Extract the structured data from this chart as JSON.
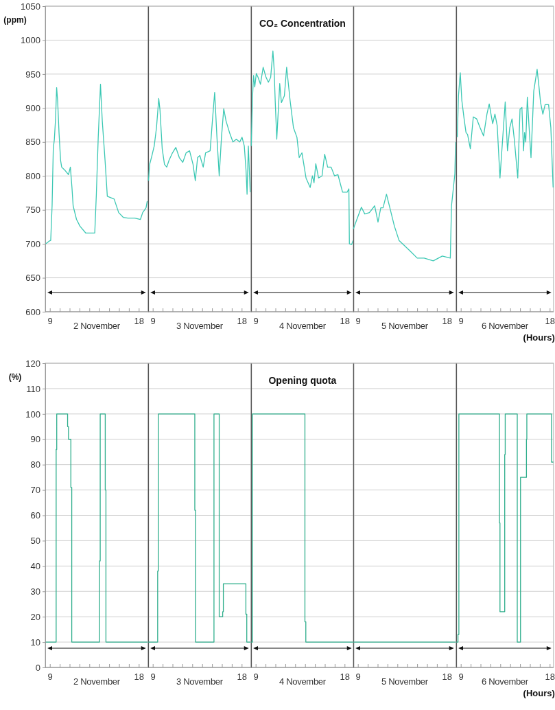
{
  "chart_data": [
    {
      "type": "line",
      "ylabel": "(ppm)",
      "xlabel": "2 November",
      "grid": "y",
      "marker": "none",
      "line_style": "solid",
      "xlim": [
        8.5,
        18.9
      ],
      "ylim": [
        600,
        1050
      ],
      "yticks": [
        600,
        650,
        700,
        750,
        800,
        850,
        900,
        950,
        1000,
        1050
      ],
      "xticks": [
        {
          "value": 9,
          "label": "9"
        },
        {
          "value": 10,
          "label": null
        },
        {
          "value": 11,
          "label": null
        },
        {
          "value": 12,
          "label": null
        },
        {
          "value": 13,
          "label": null
        },
        {
          "value": 14,
          "label": null
        },
        {
          "value": 15,
          "label": null
        },
        {
          "value": 16,
          "label": null
        },
        {
          "value": 17,
          "label": null
        },
        {
          "value": 18,
          "label": "18"
        }
      ],
      "series": [
        {
          "color": "#3cc8b4",
          "x": [
            8.55,
            8.89,
            9.05,
            9.19,
            9.31,
            9.42,
            9.54,
            9.65,
            9.75,
            9.89,
            10.05,
            10.16,
            10.51,
            10.85,
            11.04,
            11.2,
            11.32,
            11.66,
            12.01,
            12.59,
            13.16,
            13.51,
            13.67,
            13.86,
            14.09,
            14.27,
            14.55,
            14.78,
            15.47,
            15.93,
            16.39,
            16.86,
            17.55,
            18.13,
            18.36,
            18.7,
            18.82
          ],
          "values": [
            700,
            704,
            705,
            756,
            840,
            854,
            884,
            930,
            911,
            864,
            823,
            813,
            808,
            802,
            813,
            783,
            756,
            736,
            726,
            716,
            716,
            716,
            773,
            857,
            935,
            881,
            823,
            770,
            766,
            746,
            739,
            738,
            738,
            736,
            746,
            753,
            763
          ]
        }
      ]
    },
    {
      "type": "line",
      "xlabel": "3 November",
      "grid": "y",
      "marker": "none",
      "line_style": "solid",
      "tick_labels": "x",
      "xlim": [
        8.5,
        18.9
      ],
      "ylim": [
        600,
        1050
      ],
      "yticks": [
        600,
        650,
        700,
        750,
        800,
        850,
        900,
        950,
        1000,
        1050
      ],
      "xticks": [
        {
          "value": 9,
          "label": "9"
        },
        {
          "value": 10,
          "label": null
        },
        {
          "value": 11,
          "label": null
        },
        {
          "value": 12,
          "label": null
        },
        {
          "value": 13,
          "label": null
        },
        {
          "value": 14,
          "label": null
        },
        {
          "value": 15,
          "label": null
        },
        {
          "value": 16,
          "label": null
        },
        {
          "value": 17,
          "label": null
        },
        {
          "value": 18,
          "label": "18"
        }
      ],
      "series": [
        {
          "color": "#3cc8b4",
          "x": [
            8.53,
            8.65,
            8.88,
            9.11,
            9.34,
            9.57,
            9.69,
            9.92,
            10.15,
            10.38,
            10.61,
            10.96,
            11.3,
            11.65,
            12.0,
            12.34,
            12.69,
            13.04,
            13.27,
            13.5,
            13.73,
            14.07,
            14.31,
            14.77,
            15.0,
            15.23,
            15.46,
            15.69,
            15.92,
            16.15,
            16.38,
            16.73,
            17.08,
            17.42,
            17.77,
            18.0,
            18.23,
            18.41,
            18.51,
            18.64,
            18.83
          ],
          "values": [
            793,
            817,
            830,
            844,
            871,
            914,
            898,
            840,
            817,
            813,
            823,
            834,
            842,
            827,
            820,
            834,
            837,
            817,
            793,
            827,
            830,
            813,
            834,
            837,
            881,
            923,
            857,
            800,
            857,
            899,
            881,
            864,
            850,
            854,
            850,
            857,
            844,
            807,
            773,
            844,
            776
          ]
        }
      ]
    },
    {
      "type": "line",
      "title": "CO₂ Concentration",
      "xlabel": "4 November",
      "grid": "y",
      "marker": "none",
      "line_style": "solid",
      "tick_labels": "x",
      "xlim": [
        8.5,
        18.9
      ],
      "ylim": [
        600,
        1050
      ],
      "yticks": [
        600,
        650,
        700,
        750,
        800,
        850,
        900,
        950,
        1000,
        1050
      ],
      "xticks": [
        {
          "value": 9,
          "label": "9"
        },
        {
          "value": 10,
          "label": null
        },
        {
          "value": 11,
          "label": null
        },
        {
          "value": 12,
          "label": null
        },
        {
          "value": 13,
          "label": null
        },
        {
          "value": 14,
          "label": null
        },
        {
          "value": 15,
          "label": null
        },
        {
          "value": 16,
          "label": null
        },
        {
          "value": 17,
          "label": null
        },
        {
          "value": 18,
          "label": "18"
        }
      ],
      "series": [
        {
          "color": "#3cc8b4",
          "x": [
            8.52,
            8.64,
            8.75,
            8.87,
            9.03,
            9.21,
            9.45,
            9.72,
            10.02,
            10.25,
            10.48,
            10.71,
            10.83,
            10.94,
            11.1,
            11.4,
            11.57,
            11.87,
            12.1,
            12.45,
            12.79,
            13.14,
            13.37,
            13.65,
            14.06,
            14.48,
            14.71,
            14.87,
            15.05,
            15.33,
            15.68,
            15.95,
            16.25,
            16.6,
            16.95,
            17.29,
            17.76,
            18.22,
            18.4,
            18.45,
            18.68,
            18.82
          ],
          "values": [
            844,
            914,
            948,
            931,
            951,
            945,
            935,
            960,
            945,
            938,
            945,
            984,
            958,
            911,
            854,
            936,
            908,
            918,
            960,
            911,
            871,
            857,
            827,
            834,
            797,
            783,
            800,
            790,
            818,
            797,
            800,
            832,
            813,
            813,
            800,
            802,
            776,
            776,
            781,
            700,
            699,
            705
          ]
        }
      ]
    },
    {
      "type": "line",
      "xlabel": "5 November",
      "grid": "y",
      "marker": "none",
      "line_style": "solid",
      "tick_labels": "x",
      "xlim": [
        8.5,
        18.9
      ],
      "ylim": [
        600,
        1050
      ],
      "yticks": [
        600,
        650,
        700,
        750,
        800,
        850,
        900,
        950,
        1000,
        1050
      ],
      "xticks": [
        {
          "value": 9,
          "label": "9"
        },
        {
          "value": 10,
          "label": null
        },
        {
          "value": 11,
          "label": null
        },
        {
          "value": 12,
          "label": null
        },
        {
          "value": 13,
          "label": null
        },
        {
          "value": 14,
          "label": null
        },
        {
          "value": 15,
          "label": null
        },
        {
          "value": 16,
          "label": null
        },
        {
          "value": 17,
          "label": null
        },
        {
          "value": 18,
          "label": "18"
        }
      ],
      "series": [
        {
          "color": "#3cc8b4",
          "x": [
            8.51,
            8.86,
            9.32,
            9.66,
            10.13,
            10.66,
            11.0,
            11.28,
            11.51,
            11.86,
            12.2,
            12.66,
            13.13,
            13.7,
            14.28,
            14.97,
            15.67,
            16.59,
            17.51,
            18.32,
            18.44,
            18.78,
            18.85
          ],
          "values": [
            722,
            736,
            754,
            744,
            746,
            756,
            732,
            753,
            753,
            773,
            753,
            726,
            705,
            697,
            689,
            679,
            679,
            675,
            682,
            679,
            756,
            803,
            850
          ]
        }
      ]
    },
    {
      "type": "line",
      "xlabel": "6 November",
      "grid": "y",
      "marker": "none",
      "line_style": "solid",
      "tick_labels": "x",
      "xlim": [
        8.5,
        18.35
      ],
      "ylim": [
        600,
        1050
      ],
      "yticks": [
        600,
        650,
        700,
        750,
        800,
        850,
        900,
        950,
        1000,
        1050
      ],
      "xticks": [
        {
          "value": 9,
          "label": "9"
        },
        {
          "value": 10,
          "label": null
        },
        {
          "value": 11,
          "label": null
        },
        {
          "value": 12,
          "label": null
        },
        {
          "value": 13,
          "label": null
        },
        {
          "value": 14,
          "label": null
        },
        {
          "value": 15,
          "label": null
        },
        {
          "value": 16,
          "label": null
        },
        {
          "value": 17,
          "label": null
        },
        {
          "value": 18,
          "label": "18"
        }
      ],
      "annotations": [
        "(Hours)"
      ],
      "series": [
        {
          "color": "#3cc8b4",
          "x": [
            8.61,
            8.73,
            8.91,
            9.07,
            9.3,
            9.49,
            9.65,
            9.93,
            10.23,
            10.57,
            10.92,
            11.27,
            11.61,
            11.84,
            12.19,
            12.42,
            12.65,
            12.93,
            13.18,
            13.46,
            13.69,
            13.92,
            14.15,
            14.38,
            14.73,
            14.96,
            15.15,
            15.31,
            15.42,
            15.54,
            15.7,
            15.88,
            16.07,
            16.35,
            16.69,
            16.88,
            17.04,
            17.27,
            17.5,
            17.85,
            18.08,
            18.31
          ],
          "values": [
            857,
            918,
            952,
            911,
            884,
            864,
            861,
            840,
            887,
            884,
            871,
            859,
            891,
            906,
            877,
            891,
            874,
            797,
            850,
            909,
            837,
            871,
            884,
            854,
            797,
            898,
            901,
            837,
            864,
            850,
            916,
            871,
            827,
            925,
            957,
            931,
            908,
            891,
            905,
            905,
            871,
            783
          ]
        }
      ]
    },
    {
      "type": "step",
      "ylabel": "(%)",
      "xlabel": "2 November",
      "grid": "y",
      "marker": "none",
      "line_style": "solid",
      "xlim": [
        8.5,
        18.9
      ],
      "ylim": [
        0,
        120
      ],
      "yticks": [
        0,
        10,
        20,
        30,
        40,
        50,
        60,
        70,
        80,
        90,
        100,
        110,
        120
      ],
      "xticks": [
        {
          "value": 9,
          "label": "9"
        },
        {
          "value": 10,
          "label": null
        },
        {
          "value": 11,
          "label": null
        },
        {
          "value": 12,
          "label": null
        },
        {
          "value": 13,
          "label": null
        },
        {
          "value": 14,
          "label": null
        },
        {
          "value": 15,
          "label": null
        },
        {
          "value": 16,
          "label": null
        },
        {
          "value": 17,
          "label": null
        },
        {
          "value": 18,
          "label": "18"
        }
      ],
      "series": [
        {
          "color": "#2fae8c",
          "x": [
            8.55,
            9.6,
            9.66,
            10.76,
            10.85,
            11.09,
            11.18,
            13.99,
            14.06,
            14.57,
            14.64,
            18.85
          ],
          "values": [
            10,
            86,
            100,
            95,
            90,
            71,
            10,
            42,
            100,
            70,
            10,
            10
          ]
        }
      ]
    },
    {
      "type": "step",
      "xlabel": "3 November",
      "grid": "y",
      "marker": "none",
      "line_style": "solid",
      "tick_labels": "x",
      "xlim": [
        8.5,
        18.9
      ],
      "ylim": [
        0,
        120
      ],
      "yticks": [
        0,
        10,
        20,
        30,
        40,
        50,
        60,
        70,
        80,
        90,
        100,
        110,
        120
      ],
      "xticks": [
        {
          "value": 9,
          "label": "9"
        },
        {
          "value": 10,
          "label": null
        },
        {
          "value": 11,
          "label": null
        },
        {
          "value": 12,
          "label": null
        },
        {
          "value": 13,
          "label": null
        },
        {
          "value": 14,
          "label": null
        },
        {
          "value": 15,
          "label": null
        },
        {
          "value": 16,
          "label": null
        },
        {
          "value": 17,
          "label": null
        },
        {
          "value": 18,
          "label": "18"
        }
      ],
      "series": [
        {
          "color": "#2fae8c",
          "x": [
            8.5,
            9.46,
            9.53,
            13.22,
            13.29,
            15.16,
            15.69,
            16.04,
            16.11,
            18.39,
            18.48,
            18.85
          ],
          "values": [
            10,
            38,
            100,
            62,
            10,
            100,
            20,
            22,
            33,
            21,
            10,
            10
          ]
        }
      ]
    },
    {
      "type": "step",
      "title": "Opening quota",
      "xlabel": "4 November",
      "grid": "y",
      "marker": "none",
      "line_style": "solid",
      "tick_labels": "x",
      "xlim": [
        8.5,
        18.9
      ],
      "ylim": [
        0,
        120
      ],
      "yticks": [
        0,
        10,
        20,
        30,
        40,
        50,
        60,
        70,
        80,
        90,
        100,
        110,
        120
      ],
      "xticks": [
        {
          "value": 9,
          "label": "9"
        },
        {
          "value": 10,
          "label": null
        },
        {
          "value": 11,
          "label": null
        },
        {
          "value": 12,
          "label": null
        },
        {
          "value": 13,
          "label": null
        },
        {
          "value": 14,
          "label": null
        },
        {
          "value": 15,
          "label": null
        },
        {
          "value": 16,
          "label": null
        },
        {
          "value": 17,
          "label": null
        },
        {
          "value": 18,
          "label": "18"
        }
      ],
      "series": [
        {
          "color": "#2fae8c",
          "x": [
            8.5,
            8.64,
            13.95,
            14.04,
            18.85
          ],
          "values": [
            10,
            100,
            18,
            10,
            10
          ]
        }
      ]
    },
    {
      "type": "step",
      "xlabel": "5 November",
      "grid": "y",
      "marker": "none",
      "line_style": "solid",
      "tick_labels": "x",
      "xlim": [
        8.5,
        18.9
      ],
      "ylim": [
        0,
        120
      ],
      "yticks": [
        0,
        10,
        20,
        30,
        40,
        50,
        60,
        70,
        80,
        90,
        100,
        110,
        120
      ],
      "xticks": [
        {
          "value": 9,
          "label": "9"
        },
        {
          "value": 10,
          "label": null
        },
        {
          "value": 11,
          "label": null
        },
        {
          "value": 12,
          "label": null
        },
        {
          "value": 13,
          "label": null
        },
        {
          "value": 14,
          "label": null
        },
        {
          "value": 15,
          "label": null
        },
        {
          "value": 16,
          "label": null
        },
        {
          "value": 17,
          "label": null
        },
        {
          "value": 18,
          "label": "18"
        }
      ],
      "series": [
        {
          "color": "#2fae8c",
          "x": [
            8.5,
            18.85
          ],
          "values": [
            10,
            10
          ]
        }
      ]
    },
    {
      "type": "step",
      "xlabel": "6 November",
      "grid": "y",
      "marker": "none",
      "line_style": "solid",
      "tick_labels": "x",
      "xlim": [
        8.5,
        18.35
      ],
      "ylim": [
        0,
        120
      ],
      "yticks": [
        0,
        10,
        20,
        30,
        40,
        50,
        60,
        70,
        80,
        90,
        100,
        110,
        120
      ],
      "xticks": [
        {
          "value": 9,
          "label": "9"
        },
        {
          "value": 10,
          "label": null
        },
        {
          "value": 11,
          "label": null
        },
        {
          "value": 12,
          "label": null
        },
        {
          "value": 13,
          "label": null
        },
        {
          "value": 14,
          "label": null
        },
        {
          "value": 15,
          "label": null
        },
        {
          "value": 16,
          "label": null
        },
        {
          "value": 17,
          "label": null
        },
        {
          "value": 18,
          "label": "18"
        }
      ],
      "annotations": [
        "(Hours)"
      ],
      "series": [
        {
          "color": "#2fae8c",
          "x": [
            8.5,
            8.68,
            8.77,
            12.88,
            12.93,
            13.41,
            13.46,
            14.68,
            15.01,
            15.61,
            15.65,
            18.15,
            18.33
          ],
          "values": [
            10,
            13,
            100,
            57,
            22,
            84,
            100,
            10,
            75,
            90,
            100,
            81,
            81
          ]
        }
      ]
    }
  ]
}
